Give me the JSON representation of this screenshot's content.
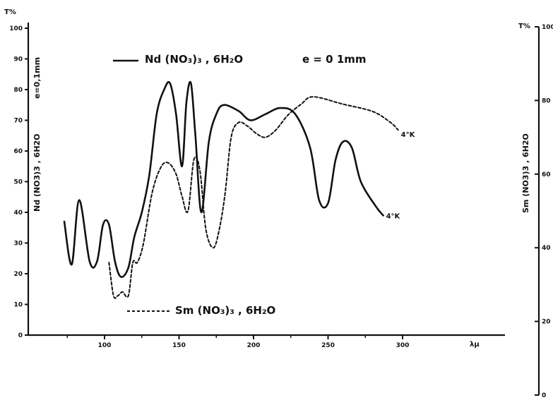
{
  "chart_data": {
    "type": "line",
    "left_axis": {
      "label": "T%",
      "ticks": [
        "0",
        "10",
        "20",
        "30",
        "40",
        "50",
        "60",
        "70",
        "80",
        "90",
        "100"
      ],
      "ylim": [
        0,
        100
      ]
    },
    "right_axis": {
      "label": "T%",
      "ticks": [
        "0",
        "20",
        "40",
        "60",
        "80",
        "100"
      ],
      "ylim": [
        0,
        100
      ]
    },
    "x_axis": {
      "label": "λμ",
      "ticks": [
        "100",
        "150",
        "200",
        "250",
        "300"
      ],
      "xlim": [
        70,
        330
      ]
    },
    "left_side_label": "Nd (NO3)3 , 6H2O",
    "left_side_label_2": "e=0,1mm",
    "right_side_label": "Sm (NO3)3 , 6H2O",
    "legend": {
      "nd_formula": "Nd (NO₃)₃  ,  6H₂O",
      "nd_thickness": "e = 0 1mm",
      "sm_formula": "Sm (NO₃)₃  ,  6H₂O"
    },
    "series": [
      {
        "name": "Nd (NO3)3 , 6H2O",
        "axis": "left",
        "style": "solid",
        "annotation": "4°K",
        "points": [
          [
            73,
            37
          ],
          [
            78,
            23
          ],
          [
            83,
            44
          ],
          [
            90,
            24
          ],
          [
            95,
            24
          ],
          [
            99,
            36
          ],
          [
            103,
            36
          ],
          [
            107,
            24
          ],
          [
            111,
            19
          ],
          [
            116,
            22
          ],
          [
            120,
            32
          ],
          [
            125,
            40
          ],
          [
            130,
            52
          ],
          [
            135,
            72
          ],
          [
            140,
            80
          ],
          [
            144,
            82
          ],
          [
            148,
            72
          ],
          [
            152,
            55
          ],
          [
            155,
            76
          ],
          [
            158,
            82
          ],
          [
            161,
            65
          ],
          [
            165,
            40
          ],
          [
            170,
            63
          ],
          [
            175,
            72
          ],
          [
            180,
            75
          ],
          [
            190,
            73
          ],
          [
            198,
            70
          ],
          [
            208,
            72
          ],
          [
            218,
            74
          ],
          [
            228,
            72
          ],
          [
            238,
            61
          ],
          [
            244,
            44
          ],
          [
            250,
            43
          ],
          [
            255,
            57
          ],
          [
            260,
            63
          ],
          [
            266,
            61
          ],
          [
            272,
            50
          ],
          [
            282,
            42
          ],
          [
            287,
            39
          ]
        ]
      },
      {
        "name": "Sm (NO3)3 , 6H2O",
        "axis": "right",
        "style": "dashed",
        "annotation": "4°K",
        "points": [
          [
            103,
            36
          ],
          [
            106,
            27
          ],
          [
            109,
            27
          ],
          [
            112,
            28
          ],
          [
            116,
            27
          ],
          [
            119,
            36
          ],
          [
            122,
            36
          ],
          [
            126,
            41
          ],
          [
            132,
            55
          ],
          [
            138,
            62
          ],
          [
            143,
            63
          ],
          [
            148,
            60
          ],
          [
            152,
            54
          ],
          [
            156,
            50
          ],
          [
            160,
            64
          ],
          [
            164,
            61
          ],
          [
            168,
            45
          ],
          [
            173,
            40
          ],
          [
            177,
            45
          ],
          [
            181,
            55
          ],
          [
            185,
            70
          ],
          [
            190,
            74
          ],
          [
            196,
            73
          ],
          [
            202,
            71
          ],
          [
            208,
            70
          ],
          [
            215,
            72
          ],
          [
            223,
            76
          ],
          [
            232,
            79
          ],
          [
            240,
            81
          ],
          [
            260,
            79
          ],
          [
            280,
            77
          ],
          [
            292,
            74
          ],
          [
            297,
            72
          ]
        ]
      }
    ]
  }
}
